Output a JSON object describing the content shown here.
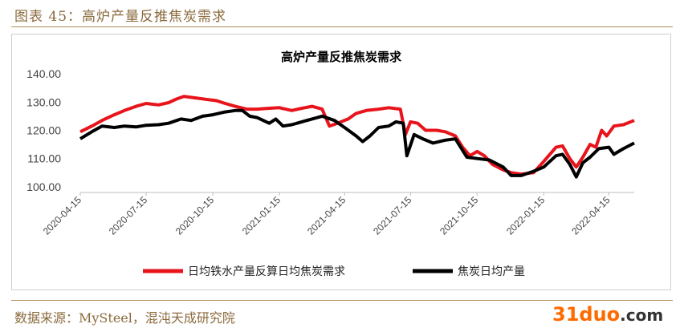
{
  "figure": {
    "caption": "图表 45：高炉产量反推焦炭需求",
    "source": "数据来源：MySteel，混沌天成研究院",
    "watermark_main": "31duo",
    "watermark_suffix": ".com"
  },
  "colors": {
    "series_red": "#e8141b",
    "series_black": "#000000",
    "caption": "#8a6a3c"
  },
  "chart_data": {
    "type": "line",
    "title": "高炉产量反推焦炭需求",
    "ylim": [
      98,
      142
    ],
    "yticks": [
      "100.00",
      "110.00",
      "120.00",
      "130.00",
      "140.00"
    ],
    "ytick_values": [
      100,
      110,
      120,
      130,
      140
    ],
    "xticks": [
      "2020-04-15",
      "2020-07-15",
      "2020-10-15",
      "2021-01-15",
      "2021-04-15",
      "2021-07-15",
      "2021-10-15",
      "2022-01-15",
      "2022-04-15"
    ],
    "legend_position": "bottom",
    "x_start": "2020-04-15",
    "x_end": "2022-05-20",
    "series": [
      {
        "name": "日均铁水产量反算日均焦炭需求",
        "color": "#e8141b",
        "points": [
          [
            "2020-04-15",
            119.5
          ],
          [
            "2020-05-01",
            121.5
          ],
          [
            "2020-05-15",
            123.5
          ],
          [
            "2020-06-01",
            125.5
          ],
          [
            "2020-06-15",
            127
          ],
          [
            "2020-07-01",
            128.5
          ],
          [
            "2020-07-15",
            129.5
          ],
          [
            "2020-08-01",
            129
          ],
          [
            "2020-08-15",
            129.8
          ],
          [
            "2020-08-25",
            131
          ],
          [
            "2020-09-05",
            132
          ],
          [
            "2020-09-20",
            131.5
          ],
          [
            "2020-10-05",
            131
          ],
          [
            "2020-10-20",
            130.5
          ],
          [
            "2020-11-01",
            129.5
          ],
          [
            "2020-11-15",
            128.5
          ],
          [
            "2020-12-01",
            127.5
          ],
          [
            "2020-12-15",
            127.5
          ],
          [
            "2021-01-01",
            127.8
          ],
          [
            "2021-01-15",
            128
          ],
          [
            "2021-02-01",
            127
          ],
          [
            "2021-02-15",
            127.8
          ],
          [
            "2021-03-01",
            128.5
          ],
          [
            "2021-03-15",
            127.5
          ],
          [
            "2021-03-25",
            121.5
          ],
          [
            "2021-04-05",
            122.5
          ],
          [
            "2021-04-20",
            124
          ],
          [
            "2021-05-01",
            126
          ],
          [
            "2021-05-15",
            127
          ],
          [
            "2021-06-01",
            127.5
          ],
          [
            "2021-06-15",
            128
          ],
          [
            "2021-07-01",
            127.5
          ],
          [
            "2021-07-08",
            118.5
          ],
          [
            "2021-07-15",
            123
          ],
          [
            "2021-07-25",
            122.5
          ],
          [
            "2021-08-05",
            120
          ],
          [
            "2021-08-20",
            120
          ],
          [
            "2021-09-01",
            119.5
          ],
          [
            "2021-09-15",
            118
          ],
          [
            "2021-09-25",
            114
          ],
          [
            "2021-10-05",
            111
          ],
          [
            "2021-10-15",
            112.5
          ],
          [
            "2021-10-25",
            111
          ],
          [
            "2021-11-05",
            108
          ],
          [
            "2021-11-20",
            106
          ],
          [
            "2021-12-01",
            105
          ],
          [
            "2021-12-15",
            104.5
          ],
          [
            "2022-01-01",
            105
          ],
          [
            "2022-01-15",
            109
          ],
          [
            "2022-02-01",
            114
          ],
          [
            "2022-02-10",
            114.5
          ],
          [
            "2022-02-20",
            110
          ],
          [
            "2022-03-01",
            107
          ],
          [
            "2022-03-10",
            110.5
          ],
          [
            "2022-03-20",
            115
          ],
          [
            "2022-03-28",
            114
          ],
          [
            "2022-04-05",
            120
          ],
          [
            "2022-04-12",
            118
          ],
          [
            "2022-04-22",
            121.5
          ],
          [
            "2022-05-05",
            122
          ],
          [
            "2022-05-20",
            123.5
          ]
        ]
      },
      {
        "name": "焦炭日均产量",
        "color": "#000000",
        "points": [
          [
            "2020-04-15",
            117
          ],
          [
            "2020-05-01",
            119.5
          ],
          [
            "2020-05-15",
            121.5
          ],
          [
            "2020-06-01",
            121
          ],
          [
            "2020-06-15",
            121.5
          ],
          [
            "2020-07-01",
            121.2
          ],
          [
            "2020-07-15",
            121.8
          ],
          [
            "2020-08-01",
            122
          ],
          [
            "2020-08-15",
            122.5
          ],
          [
            "2020-09-01",
            124
          ],
          [
            "2020-09-15",
            123.5
          ],
          [
            "2020-10-01",
            125
          ],
          [
            "2020-10-15",
            125.5
          ],
          [
            "2020-11-01",
            126.5
          ],
          [
            "2020-11-15",
            127
          ],
          [
            "2020-11-25",
            127
          ],
          [
            "2020-12-05",
            125
          ],
          [
            "2020-12-15",
            124.5
          ],
          [
            "2021-01-01",
            122.5
          ],
          [
            "2021-01-10",
            124
          ],
          [
            "2021-01-20",
            121.5
          ],
          [
            "2021-02-01",
            122
          ],
          [
            "2021-02-15",
            123
          ],
          [
            "2021-03-01",
            124
          ],
          [
            "2021-03-15",
            125
          ],
          [
            "2021-04-01",
            123.5
          ],
          [
            "2021-04-15",
            121
          ],
          [
            "2021-05-01",
            118
          ],
          [
            "2021-05-10",
            116
          ],
          [
            "2021-05-20",
            118
          ],
          [
            "2021-06-01",
            121
          ],
          [
            "2021-06-15",
            121.5
          ],
          [
            "2021-06-25",
            123
          ],
          [
            "2021-07-05",
            122.5
          ],
          [
            "2021-07-10",
            111
          ],
          [
            "2021-07-20",
            118.5
          ],
          [
            "2021-08-01",
            117
          ],
          [
            "2021-08-15",
            115.5
          ],
          [
            "2021-09-01",
            116.5
          ],
          [
            "2021-09-15",
            117
          ],
          [
            "2021-10-01",
            110.5
          ],
          [
            "2021-10-15",
            110
          ],
          [
            "2021-11-01",
            109.5
          ],
          [
            "2021-11-20",
            107
          ],
          [
            "2021-12-01",
            104
          ],
          [
            "2021-12-15",
            104
          ],
          [
            "2022-01-01",
            105.5
          ],
          [
            "2022-01-15",
            107
          ],
          [
            "2022-02-01",
            111
          ],
          [
            "2022-02-10",
            111.5
          ],
          [
            "2022-02-20",
            108
          ],
          [
            "2022-03-01",
            103.5
          ],
          [
            "2022-03-10",
            108.5
          ],
          [
            "2022-03-20",
            110.5
          ],
          [
            "2022-04-01",
            113.5
          ],
          [
            "2022-04-15",
            114
          ],
          [
            "2022-04-22",
            111.5
          ],
          [
            "2022-05-05",
            113.5
          ],
          [
            "2022-05-20",
            115.5
          ]
        ]
      }
    ]
  }
}
